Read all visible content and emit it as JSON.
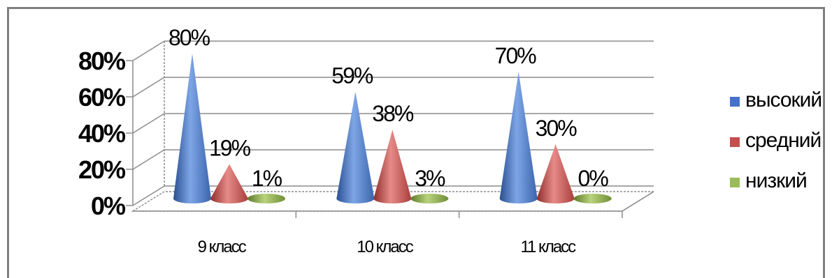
{
  "chart_data": {
    "type": "bar",
    "subtype": "3d-cone",
    "categories": [
      "9 класс",
      "10 класс",
      "11 класс"
    ],
    "series": [
      {
        "name": "высокий",
        "values": [
          80,
          59,
          70
        ],
        "labels": [
          "80%",
          "59%",
          "70%"
        ],
        "color": "#4472c4"
      },
      {
        "name": "средний",
        "values": [
          19,
          38,
          30
        ],
        "labels": [
          "19%",
          "38%",
          "30%"
        ],
        "color": "#c0504d"
      },
      {
        "name": "низкий",
        "values": [
          1,
          3,
          0
        ],
        "labels": [
          "1%",
          "3%",
          "0%"
        ],
        "color": "#9bbb59"
      }
    ],
    "yticks": [
      "0%",
      "20%",
      "40%",
      "60%",
      "80%"
    ],
    "ylim": [
      0,
      80
    ],
    "grid": true,
    "legend": "right"
  }
}
